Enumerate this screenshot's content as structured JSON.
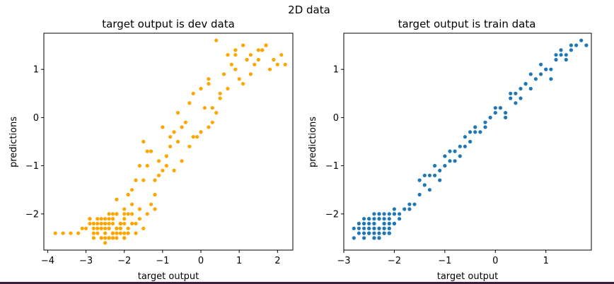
{
  "figure": {
    "suptitle": "2D data"
  },
  "chart_data": [
    {
      "type": "scatter",
      "title": "target output is dev data",
      "xlabel": "target output",
      "ylabel": "predictions",
      "xlim": [
        -4.1,
        2.4
      ],
      "ylim": [
        -2.75,
        1.75
      ],
      "xticks": [
        -4,
        -3,
        -2,
        -1,
        0,
        1,
        2
      ],
      "yticks": [
        -2,
        -1,
        0,
        1
      ],
      "grid": false,
      "color": "#ffa500",
      "series": [
        {
          "x": [
            -2.2,
            -2.5,
            -2.3,
            -2.0,
            -1.9,
            -2.6,
            -2.8,
            -2.4,
            -2.1,
            -2.3,
            -2.7,
            -1.8,
            -2.5,
            -2.2,
            -2.0,
            -3.0,
            -2.9,
            -2.4,
            -2.6,
            -1.7,
            -2.3,
            -2.1,
            -2.5,
            -2.8,
            -1.9,
            -2.2,
            -3.2,
            -2.4,
            -2.0,
            -1.6,
            -2.6,
            -3.4,
            -2.3,
            -2.7,
            -1.8,
            -2.1,
            -2.5,
            -3.6,
            -2.2,
            -1.5,
            -2.4,
            -2.9,
            -2.0,
            -3.1,
            -2.3,
            -1.9,
            -2.6,
            -3.8,
            -1.4,
            -2.2,
            -1.6,
            -1.3,
            -1.8,
            -1.2,
            -1.5,
            -1.9,
            -1.1,
            -1.4,
            -1.7,
            -1.0,
            -1.3,
            -1.6,
            -0.9,
            -1.2,
            -1.5,
            -0.8,
            -1.1,
            -0.7,
            -1.4,
            -0.9,
            -0.6,
            -1.0,
            -0.5,
            -0.8,
            -0.3,
            -0.7,
            -0.4,
            -0.1,
            -0.6,
            0.0,
            -0.3,
            0.2,
            -0.2,
            0.1,
            0.3,
            0.0,
            0.4,
            0.2,
            0.5,
            0.6,
            0.3,
            0.7,
            0.8,
            0.5,
            0.9,
            1.0,
            0.7,
            1.1,
            1.2,
            0.9,
            1.3,
            1.4,
            1.1,
            1.5,
            1.6,
            1.3,
            1.7,
            1.8,
            1.5,
            1.9,
            2.0,
            1.7,
            2.2,
            2.1,
            0.4,
            -0.5,
            0.2,
            -1.2,
            0.9,
            -0.2,
            1.6,
            -2.3,
            -2.1,
            -2.4,
            -2.0,
            -2.6,
            -2.2,
            -2.5,
            -1.9,
            -2.7,
            -2.3,
            -2.1,
            -2.8,
            -2.4,
            -2.0,
            -2.6,
            -2.2,
            -2.5,
            -1.8,
            -2.3,
            -2.9,
            -2.1,
            -2.4,
            -2.7,
            -2.0,
            -2.2,
            -2.6,
            -2.5,
            -2.3,
            -1.7,
            -2.8,
            -2.1,
            -2.4
          ],
          "y": [
            -2.3,
            -2.4,
            -2.2,
            -2.1,
            -2.3,
            -2.5,
            -2.4,
            -2.0,
            -2.2,
            -2.5,
            -2.3,
            -2.0,
            -2.1,
            -2.4,
            -2.5,
            -2.3,
            -2.2,
            -2.5,
            -2.1,
            -2.2,
            -2.0,
            -2.3,
            -2.6,
            -2.5,
            -2.4,
            -2.5,
            -2.4,
            -2.3,
            -1.9,
            -2.1,
            -2.3,
            -2.4,
            -2.1,
            -2.2,
            -1.8,
            -2.4,
            -2.2,
            -2.4,
            -2.0,
            -2.3,
            -2.5,
            -2.1,
            -2.2,
            -2.3,
            -2.4,
            -2.0,
            -2.2,
            -2.4,
            -2.0,
            -1.7,
            -1.9,
            -1.8,
            -1.5,
            -1.6,
            -1.3,
            -1.6,
            -1.2,
            -1.0,
            -1.3,
            -1.1,
            -0.7,
            -1.0,
            -0.8,
            -1.3,
            -0.5,
            -0.6,
            -0.9,
            -0.3,
            -0.7,
            -1.0,
            -0.5,
            -0.2,
            -0.9,
            -0.4,
            -0.6,
            -1.1,
            -0.1,
            -0.4,
            0.1,
            -0.3,
            0.3,
            -0.2,
            0.5,
            0.2,
            -0.1,
            0.6,
            0.1,
            0.7,
            0.4,
            0.9,
            0.2,
            0.6,
            1.1,
            0.5,
            1.0,
            0.8,
            1.3,
            0.7,
            1.2,
            1.4,
            0.9,
            1.1,
            1.5,
            1.2,
            1.4,
            1.3,
            1.5,
            1.0,
            1.4,
            1.2,
            1.1,
            1.5,
            1.1,
            1.3,
            1.6,
            -0.2,
            0.8,
            -1.9,
            1.3,
            -0.4,
            1.4,
            -2.4,
            -2.2,
            -2.3,
            -2.5,
            -2.2,
            -2.0,
            -2.3,
            -2.4,
            -2.1,
            -2.5,
            -2.3,
            -2.2,
            -2.1,
            -2.4,
            -2.3,
            -2.0,
            -2.5,
            -2.2,
            -2.4,
            -2.1,
            -2.3,
            -2.2,
            -2.4,
            -2.0,
            -2.3,
            -2.5,
            -2.2,
            -2.1,
            -2.4,
            -2.3,
            -2.2,
            -2.5
          ]
        }
      ]
    },
    {
      "type": "scatter",
      "title": "target output is train data",
      "xlabel": "target output",
      "ylabel": "predictions",
      "xlim": [
        -3.0,
        1.9
      ],
      "ylim": [
        -2.75,
        1.75
      ],
      "xticks": [
        -3,
        -2,
        -1,
        0,
        1
      ],
      "yticks": [
        -2,
        -1,
        0,
        1
      ],
      "grid": false,
      "color": "#1f77b4",
      "series": [
        {
          "x": [
            -2.8,
            -2.7,
            -2.6,
            -2.5,
            -2.4,
            -2.3,
            -2.2,
            -2.1,
            -2.0,
            -2.6,
            -2.4,
            -2.5,
            -2.3,
            -2.2,
            -2.7,
            -2.1,
            -2.4,
            -2.0,
            -2.3,
            -2.5,
            -2.2,
            -2.6,
            -1.9,
            -2.4,
            -2.1,
            -2.3,
            -2.8,
            -2.0,
            -2.5,
            -2.2,
            -1.8,
            -2.6,
            -2.3,
            -2.1,
            -2.4,
            -1.9,
            -2.7,
            -2.2,
            -1.7,
            -2.5,
            -2.0,
            -2.3,
            -1.6,
            -2.4,
            -1.5,
            -1.4,
            -1.3,
            -1.2,
            -1.1,
            -1.0,
            -1.5,
            -1.3,
            -1.1,
            -0.9,
            -0.8,
            -0.7,
            -1.2,
            -1.0,
            -0.6,
            -0.5,
            -0.4,
            -0.9,
            -0.7,
            -0.3,
            -0.2,
            -0.1,
            -0.6,
            -0.4,
            0.0,
            0.1,
            0.2,
            -0.2,
            0.0,
            0.3,
            0.4,
            0.5,
            0.1,
            0.3,
            0.6,
            0.7,
            0.8,
            0.4,
            0.6,
            0.9,
            1.0,
            1.1,
            0.7,
            0.9,
            1.2,
            1.3,
            1.4,
            1.0,
            1.2,
            1.5,
            1.6,
            1.7,
            1.3,
            1.5,
            1.8,
            -1.7,
            -0.8,
            0.2,
            1.1,
            -1.4,
            -0.5,
            0.5,
            1.4,
            -2.2,
            -2.4,
            -2.1,
            -2.5,
            -2.3,
            -2.0,
            -2.6,
            -2.2,
            -2.4,
            -2.3,
            -2.1,
            -2.5,
            -2.2,
            -2.0,
            -2.4,
            -2.3,
            -2.6,
            -2.1
          ],
          "y": [
            -2.5,
            -2.4,
            -2.3,
            -2.4,
            -2.2,
            -2.3,
            -2.1,
            -2.2,
            -2.0,
            -2.5,
            -2.4,
            -2.2,
            -2.1,
            -2.4,
            -2.3,
            -2.0,
            -2.3,
            -2.2,
            -2.5,
            -2.1,
            -2.3,
            -2.2,
            -2.0,
            -2.1,
            -2.3,
            -2.4,
            -2.3,
            -1.9,
            -2.3,
            -2.2,
            -1.9,
            -2.1,
            -2.0,
            -2.4,
            -2.5,
            -2.1,
            -2.2,
            -2.0,
            -1.9,
            -2.4,
            -2.2,
            -2.3,
            -1.8,
            -2.0,
            -1.6,
            -1.4,
            -1.5,
            -1.2,
            -1.3,
            -1.0,
            -1.3,
            -1.2,
            -1.1,
            -0.9,
            -0.7,
            -0.8,
            -1.0,
            -0.8,
            -0.6,
            -0.5,
            -0.3,
            -0.7,
            -0.6,
            -0.3,
            -0.2,
            0.0,
            -0.4,
            -0.2,
            0.1,
            0.2,
            0.1,
            -0.1,
            0.2,
            0.4,
            0.3,
            0.6,
            0.2,
            0.5,
            0.7,
            0.6,
            0.8,
            0.5,
            0.7,
            0.9,
            1.0,
            0.8,
            0.9,
            1.1,
            1.2,
            1.3,
            1.2,
            1.0,
            1.3,
            1.4,
            1.5,
            1.6,
            1.4,
            1.5,
            1.5,
            -1.8,
            -0.9,
            0.0,
            1.0,
            -1.2,
            -0.3,
            0.4,
            1.3,
            -2.3,
            -2.2,
            -2.4,
            -2.3,
            -2.1,
            -2.0,
            -2.4,
            -2.2,
            -2.5,
            -2.0,
            -2.3,
            -2.1,
            -2.4,
            -2.2,
            -2.3,
            -2.5,
            -2.2,
            -2.1
          ]
        }
      ]
    }
  ]
}
